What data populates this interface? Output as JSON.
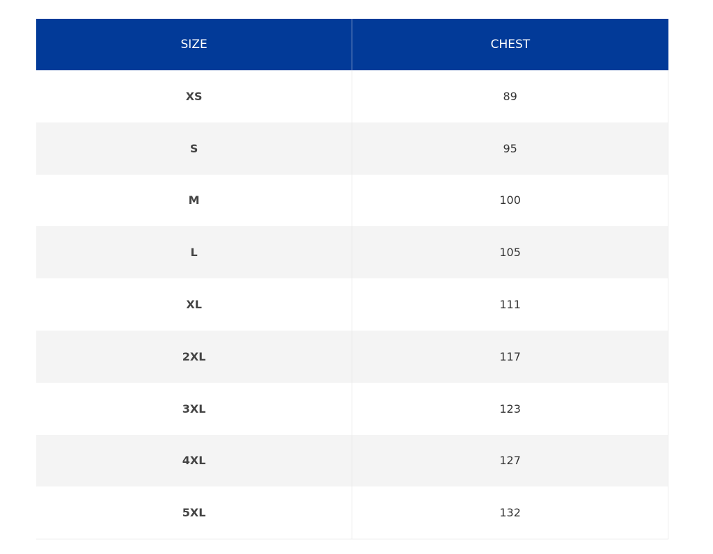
{
  "table": {
    "headers": [
      "SIZE",
      "CHEST"
    ],
    "rows": [
      [
        "XS",
        "89"
      ],
      [
        "S",
        "95"
      ],
      [
        "M",
        "100"
      ],
      [
        "L",
        "105"
      ],
      [
        "XL",
        "111"
      ],
      [
        "2XL",
        "117"
      ],
      [
        "3XL",
        "123"
      ],
      [
        "4XL",
        "127"
      ],
      [
        "5XL",
        "132"
      ]
    ]
  }
}
